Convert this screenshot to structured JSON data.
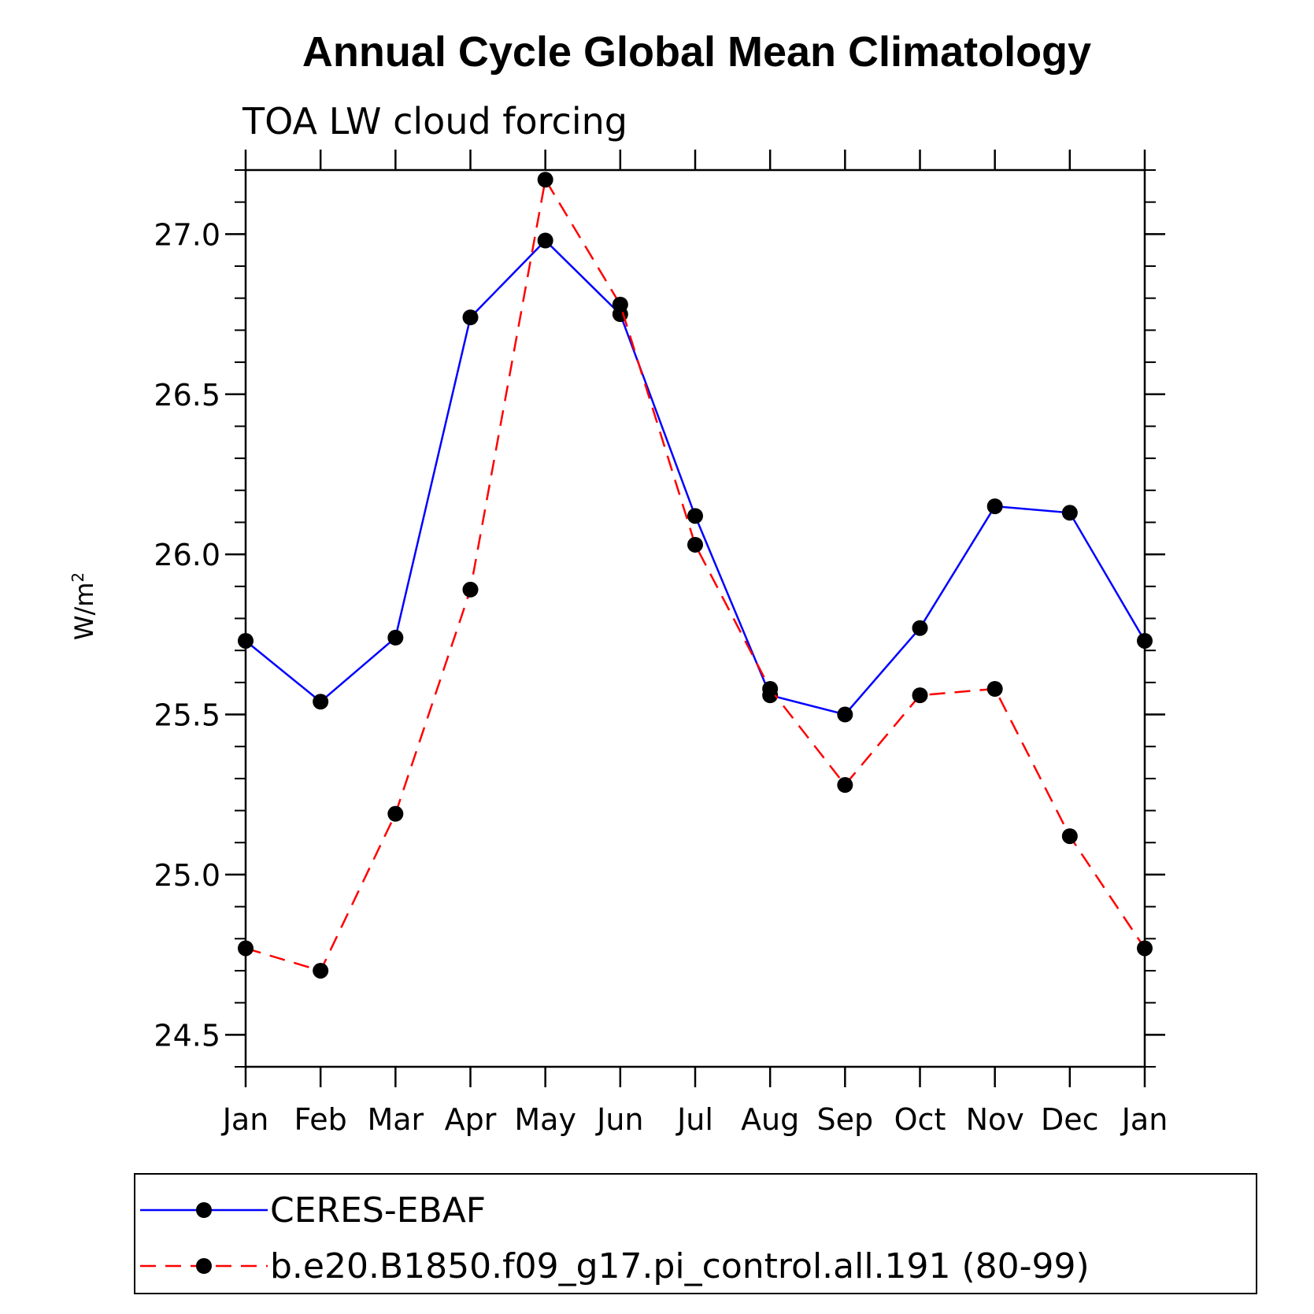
{
  "chart_data": {
    "type": "line",
    "title": "Annual Cycle Global Mean Climatology",
    "subtitle": "TOA LW cloud forcing",
    "ylabel": "W/m",
    "ylabel_sup": "2",
    "xlabel": "",
    "categories": [
      "Jan",
      "Feb",
      "Mar",
      "Apr",
      "May",
      "Jun",
      "Jul",
      "Aug",
      "Sep",
      "Oct",
      "Nov",
      "Dec",
      "Jan"
    ],
    "ylim": [
      24.4,
      27.2
    ],
    "yticks": [
      24.5,
      25.0,
      25.5,
      26.0,
      26.5,
      27.0
    ],
    "ytick_labels": [
      "24.5",
      "25.0",
      "25.5",
      "26.0",
      "26.5",
      "27.0"
    ],
    "minor_tick_step": 0.1,
    "grid": false,
    "legend_position": "bottom",
    "series": [
      {
        "name": "CERES-EBAF",
        "color": "#0000ff",
        "style": "solid",
        "marker": "circle",
        "values": [
          25.73,
          25.54,
          25.74,
          26.74,
          26.98,
          26.75,
          26.12,
          25.56,
          25.5,
          25.77,
          26.15,
          26.13,
          25.73
        ]
      },
      {
        "name": "b.e20.B1850.f09_g17.pi_control.all.191 (80-99)",
        "color": "#ff0000",
        "style": "dashed",
        "marker": "circle",
        "values": [
          24.77,
          24.7,
          25.19,
          25.89,
          27.17,
          26.78,
          26.03,
          25.58,
          25.28,
          25.56,
          25.58,
          25.12,
          24.77
        ]
      }
    ]
  }
}
